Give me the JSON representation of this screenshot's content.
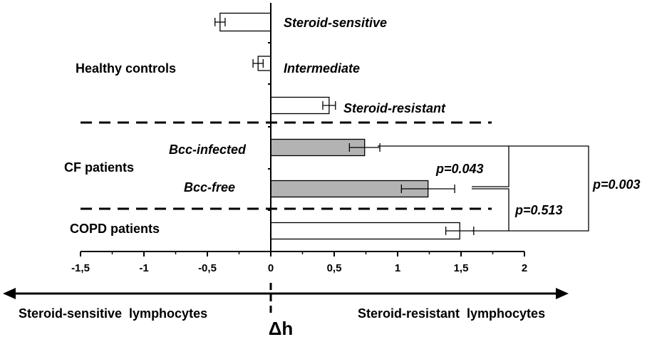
{
  "chart_data": {
    "type": "bar",
    "orientation": "horizontal",
    "xlim": [
      -1.5,
      2
    ],
    "xticks": [
      "-1,5",
      "-1",
      "-0,5",
      "0",
      "0,5",
      "1",
      "1,5",
      "2"
    ],
    "xtick_values": [
      -1.5,
      -1,
      -0.5,
      0,
      0.5,
      1,
      1.5,
      2
    ],
    "bars": [
      {
        "label": "Steroid-sensitive",
        "value": -0.4,
        "error": 0.04,
        "fill": "#ffffff"
      },
      {
        "label": "Intermediate",
        "value": -0.1,
        "error": 0.04,
        "fill": "#ffffff"
      },
      {
        "label": "Steroid-resistant",
        "value": 0.46,
        "error": 0.05,
        "fill": "#ffffff"
      },
      {
        "label": "Bcc-infected",
        "value": 0.74,
        "error": 0.12,
        "fill": "#b3b3b3"
      },
      {
        "label": "Bcc-free",
        "value": 1.24,
        "error": 0.21,
        "fill": "#b3b3b3"
      },
      {
        "label": "COPD patients",
        "value": 1.49,
        "error": 0.11,
        "fill": "#ffffff"
      }
    ],
    "groups": [
      "Healthy controls",
      "CF patients",
      "COPD patients"
    ],
    "pvalues": [
      "p=0.043",
      "p=0.513",
      "p=0.003"
    ],
    "xlabel": "Δh",
    "arrow_left_label": "Steroid-sensitive  lymphocytes",
    "arrow_right_label": "Steroid-resistant  lymphocytes"
  }
}
